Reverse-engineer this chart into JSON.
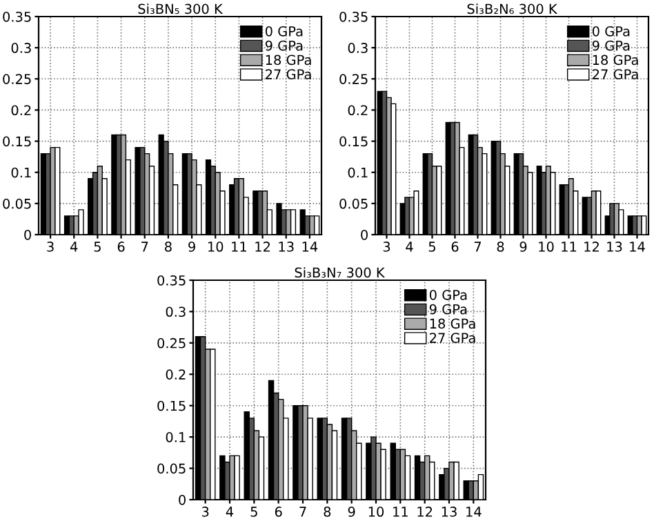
{
  "chart_data": [
    {
      "type": "bar",
      "title": "Si₃BN₅ 300 K",
      "categories": [
        "3",
        "4",
        "5",
        "6",
        "7",
        "8",
        "9",
        "10",
        "11",
        "12",
        "13",
        "14"
      ],
      "ylim": [
        0,
        0.35
      ],
      "yticks": [
        0,
        0.05,
        0.1,
        0.15,
        0.2,
        0.25,
        0.3,
        0.35
      ],
      "grid": true,
      "legend": "top right",
      "series": [
        {
          "name": "0 GPa",
          "color": "#000000",
          "values": [
            0.13,
            0.03,
            0.09,
            0.16,
            0.14,
            0.16,
            0.13,
            0.12,
            0.08,
            0.07,
            0.05,
            0.04
          ]
        },
        {
          "name": "9 GPa",
          "color": "#555555",
          "values": [
            0.13,
            0.03,
            0.1,
            0.16,
            0.14,
            0.15,
            0.13,
            0.11,
            0.09,
            0.07,
            0.04,
            0.03
          ]
        },
        {
          "name": "18 GPa",
          "color": "#aaaaaa",
          "values": [
            0.14,
            0.03,
            0.11,
            0.16,
            0.13,
            0.13,
            0.12,
            0.1,
            0.09,
            0.07,
            0.04,
            0.03
          ]
        },
        {
          "name": "27 GPa",
          "color": "#ffffff",
          "values": [
            0.14,
            0.04,
            0.09,
            0.12,
            0.11,
            0.08,
            0.08,
            0.07,
            0.06,
            0.04,
            0.04,
            0.03
          ]
        }
      ]
    },
    {
      "type": "bar",
      "title": "Si₃B₂N₆ 300 K",
      "categories": [
        "3",
        "4",
        "5",
        "6",
        "7",
        "8",
        "9",
        "10",
        "11",
        "12",
        "13",
        "14"
      ],
      "ylim": [
        0,
        0.35
      ],
      "yticks": [
        0,
        0.05,
        0.1,
        0.15,
        0.2,
        0.25,
        0.3,
        0.35
      ],
      "grid": true,
      "legend": "top right",
      "series": [
        {
          "name": "0 GPa",
          "color": "#000000",
          "values": [
            0.23,
            0.05,
            0.13,
            0.18,
            0.16,
            0.15,
            0.13,
            0.11,
            0.08,
            0.06,
            0.03,
            0.03
          ]
        },
        {
          "name": "9 GPa",
          "color": "#555555",
          "values": [
            0.23,
            0.06,
            0.13,
            0.18,
            0.16,
            0.15,
            0.13,
            0.1,
            0.08,
            0.06,
            0.05,
            0.03
          ]
        },
        {
          "name": "18 GPa",
          "color": "#aaaaaa",
          "values": [
            0.22,
            0.06,
            0.11,
            0.18,
            0.14,
            0.13,
            0.11,
            0.11,
            0.09,
            0.07,
            0.05,
            0.03
          ]
        },
        {
          "name": "27 GPa",
          "color": "#ffffff",
          "values": [
            0.21,
            0.07,
            0.11,
            0.14,
            0.13,
            0.11,
            0.1,
            0.1,
            0.07,
            0.07,
            0.04,
            0.03
          ]
        }
      ]
    },
    {
      "type": "bar",
      "title": "Si₃B₃N₇ 300 K",
      "categories": [
        "3",
        "4",
        "5",
        "6",
        "7",
        "8",
        "9",
        "10",
        "11",
        "12",
        "13",
        "14"
      ],
      "ylim": [
        0,
        0.35
      ],
      "yticks": [
        0,
        0.05,
        0.1,
        0.15,
        0.2,
        0.25,
        0.3,
        0.35
      ],
      "grid": true,
      "legend": "top right",
      "series": [
        {
          "name": "0 GPa",
          "color": "#000000",
          "values": [
            0.26,
            0.07,
            0.14,
            0.19,
            0.15,
            0.13,
            0.13,
            0.09,
            0.09,
            0.07,
            0.04,
            0.03
          ]
        },
        {
          "name": "9 GPa",
          "color": "#555555",
          "values": [
            0.26,
            0.06,
            0.13,
            0.17,
            0.15,
            0.13,
            0.13,
            0.1,
            0.08,
            0.06,
            0.05,
            0.03
          ]
        },
        {
          "name": "18 GPa",
          "color": "#aaaaaa",
          "values": [
            0.24,
            0.07,
            0.11,
            0.16,
            0.15,
            0.12,
            0.11,
            0.09,
            0.08,
            0.07,
            0.06,
            0.03
          ]
        },
        {
          "name": "27 GPa",
          "color": "#ffffff",
          "values": [
            0.24,
            0.07,
            0.1,
            0.13,
            0.13,
            0.11,
            0.09,
            0.08,
            0.07,
            0.06,
            0.06,
            0.04
          ]
        }
      ]
    }
  ]
}
